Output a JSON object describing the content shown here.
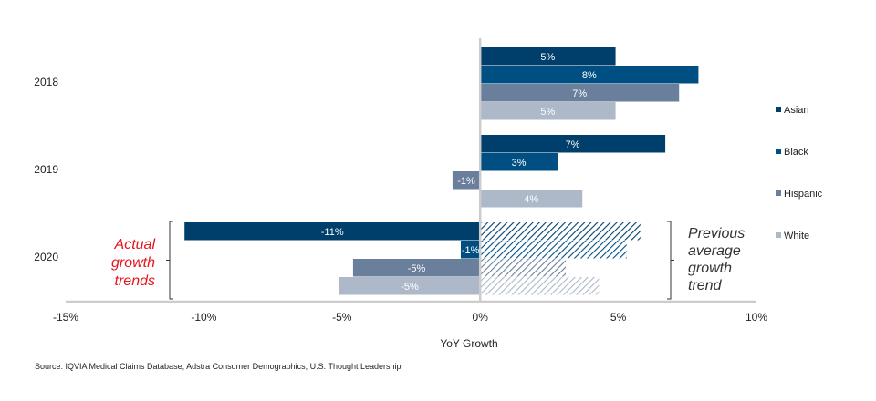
{
  "chart_data": {
    "type": "bar",
    "orientation": "horizontal",
    "title": "",
    "xlabel": "YoY Growth",
    "ylabel": "",
    "xlim": [
      -15,
      10
    ],
    "x_ticks": [
      -15,
      -10,
      -5,
      0,
      5,
      10
    ],
    "x_tick_labels": [
      "-15%",
      "-10%",
      "-5%",
      "0%",
      "5%",
      "10%"
    ],
    "categories": [
      "2018",
      "2019",
      "2020"
    ],
    "series": [
      {
        "name": "Asian",
        "color": "#003f6b",
        "values": [
          4.9,
          6.7,
          -10.7
        ],
        "labels": [
          "5%",
          "7%",
          "-11%"
        ]
      },
      {
        "name": "Black",
        "color": "#004f82",
        "values": [
          7.9,
          2.8,
          -0.7
        ],
        "labels": [
          "8%",
          "3%",
          "-1%"
        ]
      },
      {
        "name": "Hispanic",
        "color": "#6a7f9c",
        "values": [
          7.2,
          -1.0,
          -4.6
        ],
        "labels": [
          "7%",
          "-1%",
          "-5%"
        ]
      },
      {
        "name": "White",
        "color": "#adb8c8",
        "values": [
          4.9,
          3.7,
          -5.1
        ],
        "labels": [
          "5%",
          "4%",
          "-5%"
        ]
      }
    ],
    "hatched_series": {
      "category": "2020",
      "description": "Previous average growth trend",
      "values": {
        "Asian": 5.8,
        "Black": 5.3,
        "Hispanic": 3.1,
        "White": 4.3
      }
    },
    "legend": {
      "placement": "right",
      "entries": [
        "Asian",
        "Black",
        "Hispanic",
        "White"
      ]
    },
    "annotations": {
      "left": [
        "Actual",
        "growth",
        "trends"
      ],
      "right": [
        "Previous",
        "average",
        "growth",
        "trend"
      ]
    },
    "grid": false
  },
  "source": "Source: IQVIA Medical Claims Database; Adstra Consumer Demographics; U.S. Thought Leadership",
  "colors": {
    "axis": "#cccccc",
    "annotation_red": "#e8131b"
  }
}
